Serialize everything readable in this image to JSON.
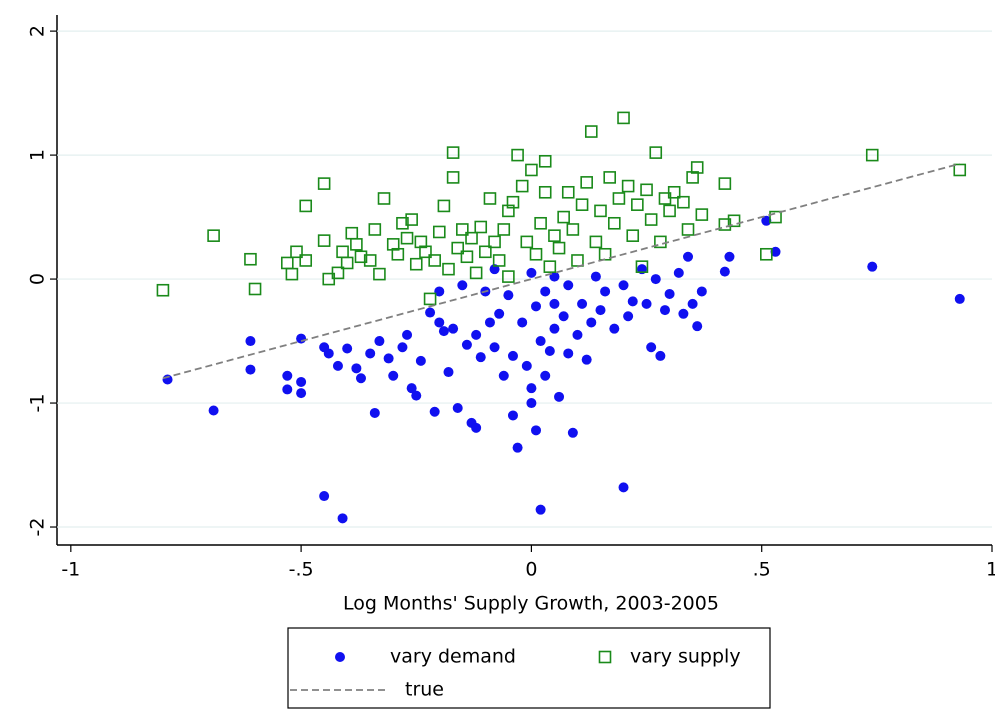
{
  "chart_data": {
    "type": "scatter",
    "xlabel": "Log Months' Supply Growth, 2003-2005",
    "xlim": [
      -1.03,
      1.0
    ],
    "ylim": [
      -2.145,
      2.13
    ],
    "xticks": [
      -1,
      {
        "value": -0.5,
        "label": "-.5"
      },
      0,
      {
        "value": 0.5,
        "label": ".5"
      },
      1
    ],
    "yticks": [
      2,
      1,
      0,
      -1,
      -2
    ],
    "grid": true,
    "legend": "bottom",
    "series": [
      {
        "name": "vary demand",
        "color": "#1010f0",
        "style": "dot",
        "x": [
          -0.79,
          -0.69,
          -0.61,
          -0.61,
          -0.5,
          -0.53,
          -0.5,
          -0.5,
          -0.53,
          -0.45,
          -0.44,
          -0.42,
          -0.4,
          -0.38,
          -0.37,
          -0.35,
          -0.34,
          -0.33,
          -0.31,
          -0.3,
          -0.28,
          -0.27,
          -0.26,
          -0.25,
          -0.24,
          -0.22,
          -0.21,
          -0.2,
          -0.19,
          -0.18,
          -0.17,
          -0.16,
          -0.14,
          -0.13,
          -0.12,
          -0.11,
          -0.1,
          -0.09,
          -0.08,
          -0.07,
          -0.06,
          -0.05,
          -0.04,
          -0.04,
          -0.03,
          -0.02,
          -0.01,
          0,
          0,
          0.01,
          0.01,
          0.02,
          0.03,
          0.03,
          0.04,
          0.05,
          0.05,
          0.06,
          0.07,
          0.08,
          0.08,
          0.09,
          0.1,
          0.11,
          0.12,
          0.13,
          0.14,
          0.15,
          0.16,
          0.18,
          0.2,
          0.21,
          0.22,
          0.24,
          0.25,
          0.26,
          0.27,
          0.28,
          0.29,
          0.3,
          0.32,
          0.33,
          0.34,
          0.35,
          0.36,
          0.37,
          0.42,
          0.43,
          0.51,
          0.53,
          0.74,
          0.93,
          0.2,
          0.02,
          -0.45,
          -0.41,
          -0.08,
          0,
          0.05,
          -0.15,
          -0.2,
          -0.12
        ],
        "values": [
          -0.81,
          -1.06,
          -0.5,
          -0.73,
          -0.48,
          -0.78,
          -0.83,
          -0.92,
          -0.89,
          -0.55,
          -0.6,
          -0.7,
          -0.56,
          -0.72,
          -0.8,
          -0.6,
          -1.08,
          -0.5,
          -0.64,
          -0.78,
          -0.55,
          -0.45,
          -0.88,
          -0.94,
          -0.66,
          -0.27,
          -1.07,
          -0.35,
          -0.42,
          -0.75,
          -0.4,
          -1.04,
          -0.53,
          -1.16,
          -1.2,
          -0.63,
          -0.1,
          -0.35,
          -0.55,
          -0.28,
          -0.78,
          -0.13,
          -0.62,
          -1.1,
          -1.36,
          -0.35,
          -0.7,
          -0.88,
          -1,
          -0.22,
          -1.22,
          -0.5,
          -0.1,
          -0.78,
          -0.58,
          -0.4,
          -0.2,
          -0.95,
          -0.3,
          -0.6,
          -0.05,
          -1.24,
          -0.45,
          -0.2,
          -0.65,
          -0.35,
          0.02,
          -0.25,
          -0.1,
          -0.4,
          -0.05,
          -0.3,
          -0.18,
          0.08,
          -0.2,
          -0.55,
          0,
          -0.62,
          -0.25,
          -0.12,
          0.05,
          -0.28,
          0.18,
          -0.2,
          -0.38,
          -0.1,
          0.06,
          0.18,
          0.47,
          0.22,
          0.1,
          -0.16,
          -1.68,
          -1.86,
          -1.75,
          -1.93,
          0.08,
          0.05,
          0.02,
          -0.05,
          -0.1,
          -0.45
        ]
      },
      {
        "name": "vary supply",
        "color": "#1a8a1a",
        "style": "square",
        "x": [
          -0.8,
          -0.69,
          -0.61,
          -0.6,
          -0.53,
          -0.52,
          -0.51,
          -0.49,
          -0.49,
          -0.45,
          -0.45,
          -0.44,
          -0.42,
          -0.41,
          -0.4,
          -0.39,
          -0.38,
          -0.37,
          -0.35,
          -0.34,
          -0.33,
          -0.32,
          -0.3,
          -0.29,
          -0.28,
          -0.27,
          -0.26,
          -0.25,
          -0.24,
          -0.23,
          -0.22,
          -0.21,
          -0.2,
          -0.19,
          -0.18,
          -0.17,
          -0.17,
          -0.16,
          -0.15,
          -0.14,
          -0.13,
          -0.12,
          -0.11,
          -0.1,
          -0.09,
          -0.08,
          -0.07,
          -0.06,
          -0.05,
          -0.05,
          -0.04,
          -0.03,
          -0.02,
          -0.01,
          0,
          0.01,
          0.02,
          0.03,
          0.03,
          0.04,
          0.05,
          0.06,
          0.07,
          0.08,
          0.09,
          0.1,
          0.11,
          0.12,
          0.13,
          0.14,
          0.15,
          0.16,
          0.17,
          0.18,
          0.19,
          0.2,
          0.21,
          0.22,
          0.23,
          0.24,
          0.25,
          0.26,
          0.27,
          0.28,
          0.29,
          0.3,
          0.31,
          0.33,
          0.34,
          0.35,
          0.36,
          0.37,
          0.42,
          0.42,
          0.44,
          0.51,
          0.53,
          0.74,
          0.93
        ],
        "values": [
          -0.09,
          0.35,
          0.16,
          -0.08,
          0.13,
          0.04,
          0.22,
          0.15,
          0.59,
          0.31,
          0.77,
          0,
          0.05,
          0.22,
          0.13,
          0.37,
          0.28,
          0.18,
          0.15,
          0.4,
          0.04,
          0.65,
          0.28,
          0.2,
          0.45,
          0.33,
          0.48,
          0.12,
          0.3,
          0.22,
          -0.16,
          0.15,
          0.38,
          0.59,
          0.08,
          0.82,
          1.02,
          0.25,
          0.4,
          0.18,
          0.33,
          0.05,
          0.42,
          0.22,
          0.65,
          0.3,
          0.15,
          0.4,
          0.02,
          0.55,
          0.62,
          1,
          0.75,
          0.3,
          0.88,
          0.2,
          0.45,
          0.7,
          0.95,
          0.1,
          0.35,
          0.25,
          0.5,
          0.7,
          0.4,
          0.15,
          0.6,
          0.78,
          1.19,
          0.3,
          0.55,
          0.2,
          0.82,
          0.45,
          0.65,
          1.3,
          0.75,
          0.35,
          0.6,
          0.1,
          0.72,
          0.48,
          1.02,
          0.3,
          0.65,
          0.55,
          0.7,
          0.62,
          0.4,
          0.82,
          0.9,
          0.52,
          0.44,
          0.77,
          0.47,
          0.2,
          0.5,
          1,
          0.88
        ]
      },
      {
        "name": "true",
        "color": "#808080",
        "style": "dashed-line",
        "x": [
          -0.8,
          0.93
        ],
        "values": [
          -0.8,
          0.93
        ]
      }
    ]
  }
}
